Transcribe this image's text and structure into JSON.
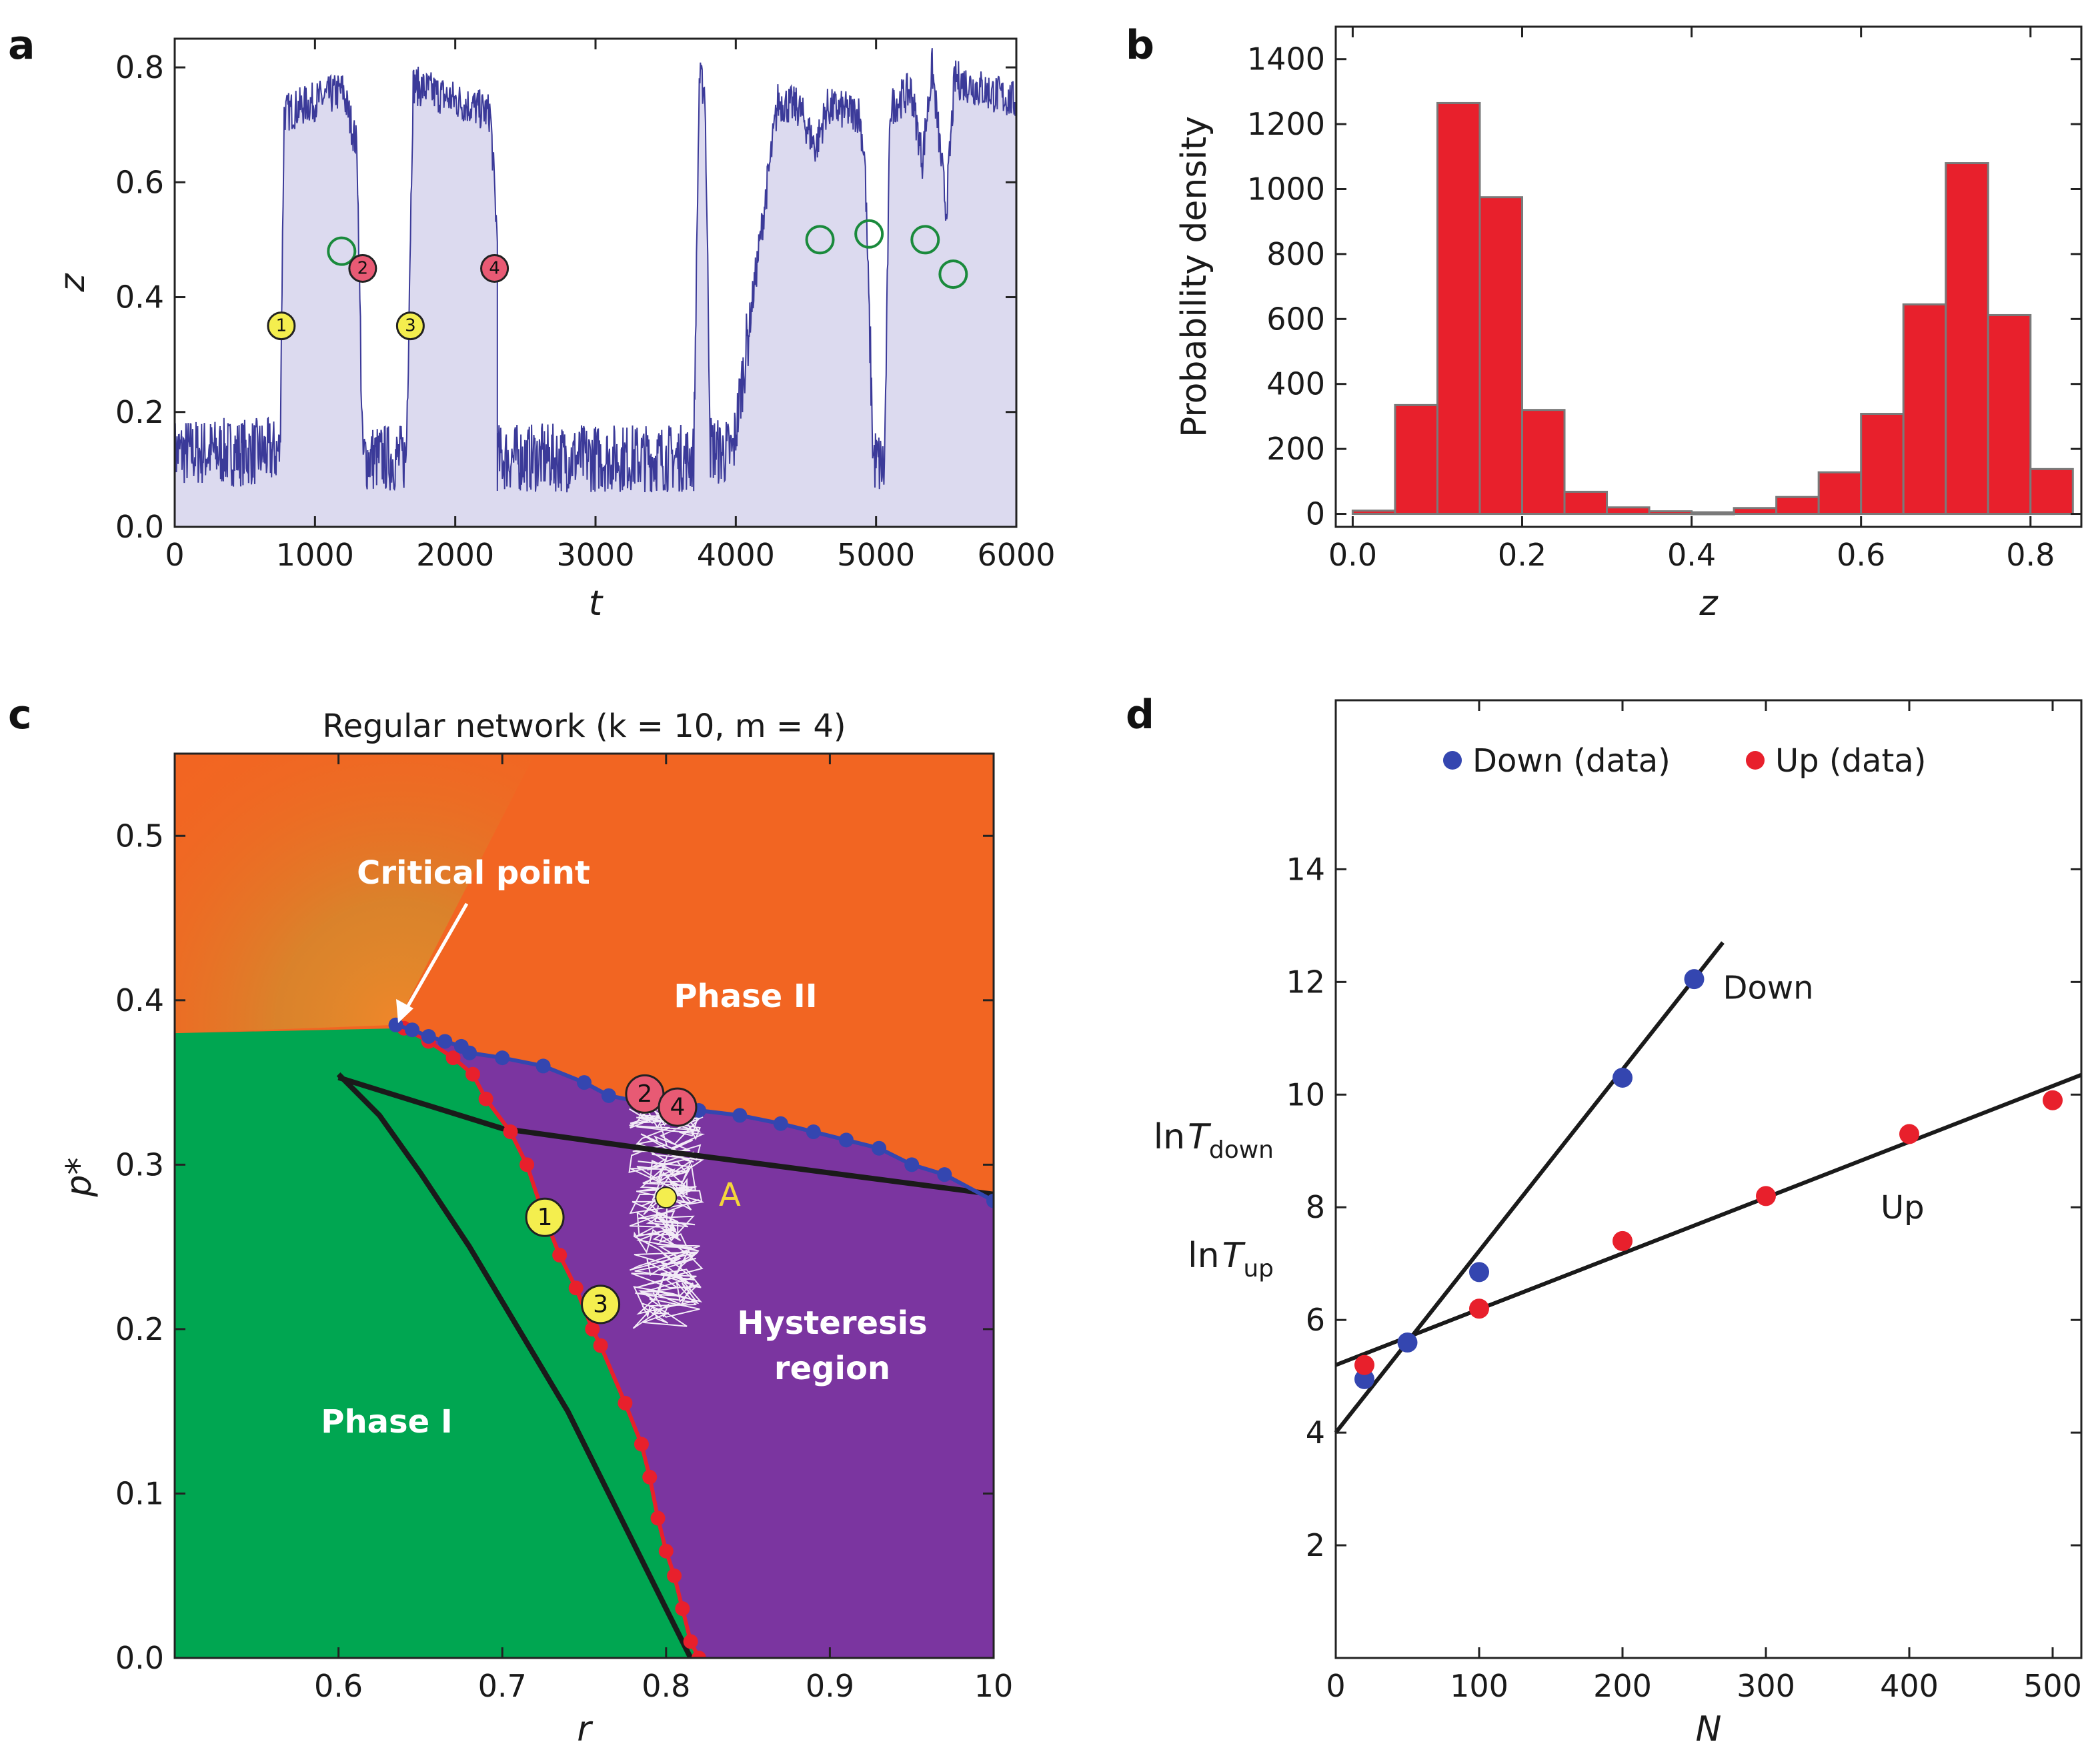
{
  "panels": {
    "a": {
      "label": "a"
    },
    "b": {
      "label": "b"
    },
    "c": {
      "label": "c"
    },
    "d": {
      "label": "d"
    }
  },
  "colors": {
    "trace": "#3b3a99",
    "trace_fill": "#dcdaef",
    "hist_bar": "#e8202c",
    "hist_edge": "#7a7a7a",
    "phase1": "#00a651",
    "phase2": "#f26522",
    "hysteresis": "#7b35a0",
    "marker_yellow": "#f4ee4e",
    "marker_red": "#e85a74",
    "marker_green_ring": "#1a8a3c",
    "down": "#3446b0",
    "up": "#e8202c",
    "label_A": "#f4d63a"
  },
  "chart_data": [
    {
      "panel": "a",
      "type": "line",
      "xlabel": "t",
      "ylabel": "z",
      "xlim": [
        0,
        6000
      ],
      "ylim": [
        0.0,
        0.85
      ],
      "xticks": [
        "0",
        "1000",
        "2000",
        "3000",
        "4000",
        "5000",
        "6000"
      ],
      "yticks": [
        "0.0",
        "0.2",
        "0.4",
        "0.6",
        "0.8"
      ],
      "series": [
        {
          "x": [
            0,
            750,
            780,
            1200,
            1300,
            1340,
            1420,
            1650,
            1700,
            2250,
            2300,
            2300,
            3700,
            3740,
            3780,
            3820,
            3880,
            3980,
            4300,
            4450,
            4570,
            4650,
            4880,
            4920,
            4980,
            5060,
            5100,
            5250,
            5330,
            5400,
            5500,
            5560,
            6000
          ],
          "y": [
            0.13,
            0.13,
            0.72,
            0.76,
            0.66,
            0.12,
            0.12,
            0.12,
            0.77,
            0.72,
            0.5,
            0.12,
            0.12,
            0.78,
            0.76,
            0.14,
            0.13,
            0.13,
            0.74,
            0.73,
            0.66,
            0.73,
            0.72,
            0.64,
            0.12,
            0.1,
            0.73,
            0.76,
            0.64,
            0.8,
            0.55,
            0.78,
            0.74
          ]
        }
      ],
      "markers": [
        {
          "label": "1",
          "x": 760,
          "y": 0.35,
          "style": "yellow"
        },
        {
          "label": "",
          "x": 1190,
          "y": 0.48,
          "style": "ring"
        },
        {
          "label": "2",
          "x": 1340,
          "y": 0.45,
          "style": "red"
        },
        {
          "label": "3",
          "x": 1680,
          "y": 0.35,
          "style": "yellow"
        },
        {
          "label": "4",
          "x": 2280,
          "y": 0.45,
          "style": "red"
        },
        {
          "label": "",
          "x": 4600,
          "y": 0.5,
          "style": "ring"
        },
        {
          "label": "",
          "x": 4950,
          "y": 0.51,
          "style": "ring"
        },
        {
          "label": "",
          "x": 5350,
          "y": 0.5,
          "style": "ring"
        },
        {
          "label": "",
          "x": 5550,
          "y": 0.44,
          "style": "ring"
        }
      ]
    },
    {
      "panel": "b",
      "type": "bar",
      "xlabel": "z",
      "ylabel": "Probability density",
      "xlim": [
        -0.02,
        0.86
      ],
      "ylim": [
        -40,
        1500
      ],
      "xticks": [
        "0.0",
        "0.2",
        "0.4",
        "0.6",
        "0.8"
      ],
      "yticks": [
        "0",
        "200",
        "400",
        "600",
        "800",
        "1000",
        "1200",
        "1400"
      ],
      "bin_edges": [
        0.0,
        0.05,
        0.1,
        0.15,
        0.2,
        0.25,
        0.3,
        0.35,
        0.4,
        0.45,
        0.5,
        0.55,
        0.6,
        0.65,
        0.7,
        0.75,
        0.8,
        0.85
      ],
      "values": [
        10,
        335,
        1265,
        975,
        320,
        68,
        20,
        8,
        5,
        18,
        52,
        128,
        308,
        645,
        1080,
        612,
        138
      ]
    },
    {
      "panel": "c",
      "type": "line",
      "title": "Regular network (k = 10, m = 4)",
      "xlabel": "r",
      "ylabel": "p*",
      "xlim": [
        0.5,
        1.0
      ],
      "ylim": [
        0.0,
        0.55
      ],
      "xticks": [
        "0.6",
        "0.7",
        "0.8",
        "0.9",
        "10"
      ],
      "yticks": [
        "0.0",
        "0.1",
        "0.2",
        "0.3",
        "0.4",
        "0.5"
      ],
      "annotations": [
        "Critical point",
        "Phase II",
        "Phase I",
        "Hysteresis region",
        "A"
      ],
      "series": [
        {
          "name": "upper spinodal",
          "x": [
            0.635,
            0.645,
            0.655,
            0.665,
            0.675,
            0.68,
            0.7,
            0.725,
            0.75,
            0.765,
            0.79,
            0.82,
            0.845,
            0.87,
            0.89,
            0.91,
            0.93,
            0.95,
            0.97,
            1.0
          ],
          "y": [
            0.385,
            0.382,
            0.378,
            0.375,
            0.372,
            0.368,
            0.365,
            0.36,
            0.35,
            0.342,
            0.337,
            0.333,
            0.33,
            0.325,
            0.32,
            0.315,
            0.31,
            0.3,
            0.294,
            0.278
          ]
        },
        {
          "name": "lower spinodal",
          "x": [
            0.64,
            0.655,
            0.67,
            0.682,
            0.69,
            0.705,
            0.715,
            0.725,
            0.735,
            0.745,
            0.755,
            0.76,
            0.775,
            0.785,
            0.79,
            0.795,
            0.8,
            0.805,
            0.81,
            0.815,
            0.82
          ],
          "y": [
            0.383,
            0.375,
            0.365,
            0.355,
            0.34,
            0.32,
            0.3,
            0.27,
            0.245,
            0.225,
            0.2,
            0.19,
            0.155,
            0.13,
            0.11,
            0.085,
            0.065,
            0.05,
            0.03,
            0.01,
            0.0
          ]
        },
        {
          "name": "black curve 1",
          "x": [
            0.6,
            0.625,
            0.65,
            0.68,
            0.71,
            0.74,
            0.77,
            0.8,
            0.815
          ],
          "y": [
            0.355,
            0.33,
            0.295,
            0.25,
            0.2,
            0.15,
            0.09,
            0.03,
            0.0
          ]
        },
        {
          "name": "black curve 2",
          "x": [
            0.6,
            0.7,
            0.8,
            0.9,
            1.0
          ],
          "y": [
            0.353,
            0.322,
            0.308,
            0.295,
            0.282
          ]
        }
      ],
      "markers": [
        {
          "label": "1",
          "x": 0.726,
          "y": 0.268,
          "style": "yellow"
        },
        {
          "label": "2",
          "x": 0.787,
          "y": 0.343,
          "style": "red"
        },
        {
          "label": "3",
          "x": 0.76,
          "y": 0.215,
          "style": "yellow"
        },
        {
          "label": "4",
          "x": 0.807,
          "y": 0.335,
          "style": "red"
        },
        {
          "label": "",
          "x": 0.8,
          "y": 0.28,
          "style": "yellow-small"
        }
      ]
    },
    {
      "panel": "d",
      "type": "scatter",
      "xlabel": "N",
      "ylabel": [
        "ln T_down",
        "ln T_up"
      ],
      "xlim": [
        0,
        520
      ],
      "ylim": [
        0,
        17
      ],
      "xticks": [
        "0",
        "100",
        "200",
        "300",
        "400",
        "500"
      ],
      "yticks": [
        "2",
        "4",
        "6",
        "8",
        "10",
        "12",
        "14"
      ],
      "legend": [
        "Down (data)",
        "Up (data)"
      ],
      "legend_position": "top",
      "series": [
        {
          "name": "Down (data)",
          "x": [
            20,
            50,
            100,
            200,
            250
          ],
          "y": [
            4.95,
            5.6,
            6.85,
            10.3,
            12.05
          ]
        },
        {
          "name": "Up (data)",
          "x": [
            20,
            100,
            200,
            300,
            400,
            500
          ],
          "y": [
            5.2,
            6.2,
            7.4,
            8.2,
            9.3,
            9.9
          ]
        }
      ],
      "fits": [
        {
          "name": "Down",
          "x": [
            0,
            270
          ],
          "y": [
            4.0,
            12.7
          ]
        },
        {
          "name": "Up",
          "x": [
            0,
            520
          ],
          "y": [
            5.2,
            10.35
          ]
        }
      ]
    }
  ]
}
